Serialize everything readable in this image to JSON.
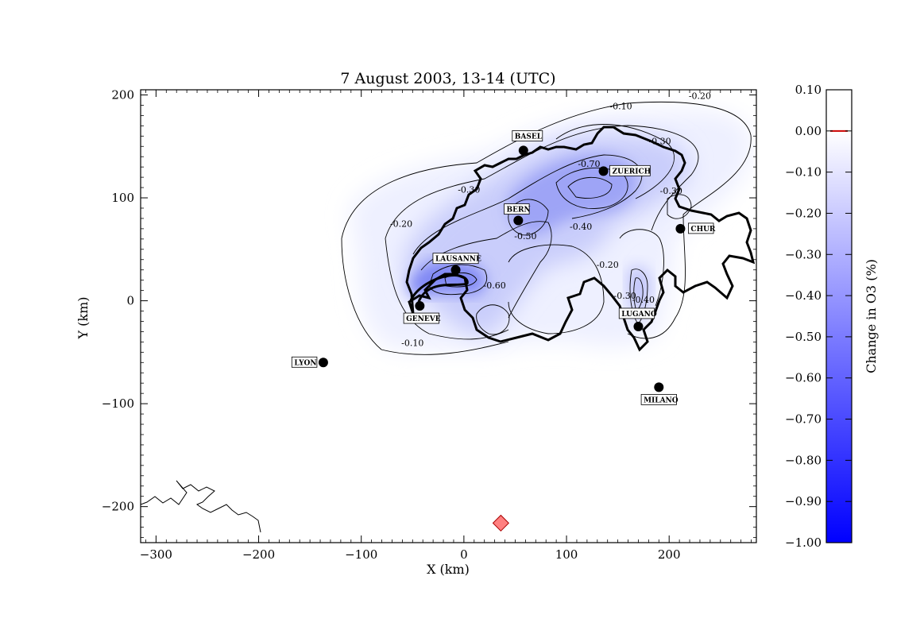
{
  "title": "7 August 2003, 13-14 (UTC)",
  "xlabel": "X (km)",
  "ylabel": "Y (km)",
  "colorbar_label": "Change in O3 (%)",
  "colors": {
    "low": "#0000ff",
    "high": "#ffffff",
    "zero_line": "#cc0000",
    "marker": "#ff8080"
  },
  "map": {
    "xlim": [
      -315,
      285
    ],
    "ylim": [
      -235,
      205
    ],
    "x_ticks": [
      -300,
      -200,
      -100,
      0,
      100,
      200
    ],
    "x_tick_labels": [
      "−300",
      "−200",
      "−100",
      "0",
      "100",
      "200"
    ],
    "y_ticks": [
      200,
      100,
      0,
      -100,
      -200
    ],
    "y_tick_labels": [
      "200",
      "100",
      "0",
      "−100",
      "−200"
    ],
    "cities": [
      {
        "name": "BASEL",
        "x": 58,
        "y": 146
      },
      {
        "name": "ZUERICH",
        "x": 136,
        "y": 126
      },
      {
        "name": "BERN",
        "x": 53,
        "y": 78
      },
      {
        "name": "CHUR",
        "x": 211,
        "y": 70
      },
      {
        "name": "LAUSANNE",
        "x": -8,
        "y": 30
      },
      {
        "name": "GENEVE",
        "x": -43,
        "y": -5
      },
      {
        "name": "LUGANO",
        "x": 170,
        "y": -25
      },
      {
        "name": "LYON",
        "x": -137,
        "y": -60
      },
      {
        "name": "MILANO",
        "x": 190,
        "y": -84
      }
    ],
    "contour_labels": [
      {
        "text": "-0.10",
        "x": 153,
        "y": 186
      },
      {
        "text": "-0.20",
        "x": 230,
        "y": 196
      },
      {
        "text": "-0.30",
        "x": 191,
        "y": 152
      },
      {
        "text": "-0.70",
        "x": 122,
        "y": 130
      },
      {
        "text": "-0.30",
        "x": 5,
        "y": 105
      },
      {
        "text": "-0.30",
        "x": 202,
        "y": 104
      },
      {
        "text": "-0.20",
        "x": -61,
        "y": 72
      },
      {
        "text": "-0.40",
        "x": 114,
        "y": 69
      },
      {
        "text": "-0.50",
        "x": 60,
        "y": 60
      },
      {
        "text": "-0.60",
        "x": 30,
        "y": 12
      },
      {
        "text": "-0.20",
        "x": 140,
        "y": 32
      },
      {
        "text": "-0.40",
        "x": 175,
        "y": -2
      },
      {
        "text": "-0.30",
        "x": 157,
        "y": 2
      },
      {
        "text": "-0.10",
        "x": -50,
        "y": -44
      }
    ],
    "marker": {
      "x": 36,
      "y": -216
    }
  },
  "colorbar": {
    "range": [
      -1.0,
      0.1
    ],
    "tick_labels": [
      "0.10",
      "0.00",
      "−0.10",
      "−0.20",
      "−0.30",
      "−0.40",
      "−0.50",
      "−0.60",
      "−0.70",
      "−0.80",
      "−0.90",
      "−1.00"
    ],
    "ticks": [
      0.1,
      0.0,
      -0.1,
      -0.2,
      -0.3,
      -0.4,
      -0.5,
      -0.6,
      -0.7,
      -0.8,
      -0.9,
      -1.0
    ]
  }
}
